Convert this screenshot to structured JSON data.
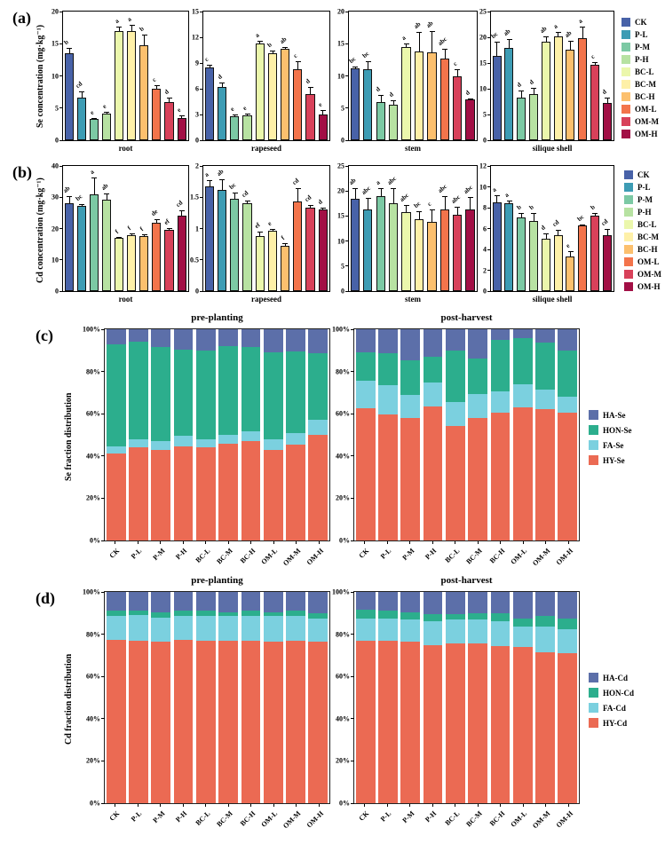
{
  "chart_data": {
    "treatments": [
      "CK",
      "P-L",
      "P-M",
      "P-H",
      "BC-L",
      "BC-M",
      "BC-H",
      "OM-L",
      "OM-M",
      "OM-H"
    ],
    "palette": [
      "#4862A8",
      "#3D9CB4",
      "#7CC9A4",
      "#B7E2A2",
      "#EBF7AC",
      "#FEF0A8",
      "#FCC06E",
      "#F3744B",
      "#D8415A",
      "#A20F45"
    ],
    "fraction_colors": {
      "HY": "#EB6A53",
      "FA": "#7BD0DF",
      "HON": "#2CAE8D",
      "HA": "#5C6FA9"
    },
    "fraction_order_bottom_to_top": [
      "HY",
      "FA",
      "HON",
      "HA"
    ],
    "panel_a": {
      "label": "(a)",
      "type": "bar",
      "ylabel": "Se concentration (mg·kg⁻¹)",
      "charts": [
        {
          "xlabel": "root",
          "ymax": 20,
          "yticks": [
            "0",
            "5",
            "10",
            "15",
            "20"
          ],
          "values": [
            13.5,
            6.6,
            3.3,
            4.1,
            17.0,
            17.0,
            14.8,
            8.0,
            6.0,
            3.5
          ],
          "errors": [
            0.9,
            1.0,
            0.2,
            0.3,
            0.6,
            1.0,
            1.6,
            0.5,
            0.6,
            0.4
          ],
          "letters": [
            "b",
            "cd",
            "e",
            "e",
            "a",
            "a",
            "b",
            "c",
            "d",
            "e"
          ]
        },
        {
          "xlabel": "rapeseed",
          "ymax": 15,
          "yticks": [
            "0",
            "3",
            "6",
            "9",
            "12",
            "15"
          ],
          "values": [
            8.5,
            6.2,
            2.8,
            2.9,
            11.3,
            10.1,
            10.7,
            8.3,
            5.4,
            3.0
          ],
          "errors": [
            0.3,
            0.5,
            0.15,
            0.2,
            0.25,
            0.3,
            0.2,
            0.9,
            0.8,
            0.5
          ],
          "letters": [
            "c",
            "d",
            "e",
            "e",
            "a",
            "b",
            "ab",
            "c",
            "d",
            "e"
          ]
        },
        {
          "xlabel": "stem",
          "ymax": 20,
          "yticks": [
            "0",
            "5",
            "10",
            "15",
            "20"
          ],
          "values": [
            11.2,
            11.0,
            6.0,
            5.5,
            14.5,
            13.8,
            13.7,
            12.7,
            10.0,
            6.3
          ],
          "errors": [
            0.2,
            1.3,
            1.0,
            0.7,
            0.6,
            3.0,
            3.2,
            1.5,
            1.0,
            0.2
          ],
          "letters": [
            "bc",
            "bc",
            "d",
            "d",
            "a",
            "ab",
            "ab",
            "abc",
            "c",
            "d"
          ]
        },
        {
          "xlabel": "silique shell",
          "ymax": 25,
          "yticks": [
            "0",
            "5",
            "10",
            "15",
            "20",
            "25"
          ],
          "values": [
            16.4,
            18.0,
            8.3,
            9.0,
            19.1,
            20.2,
            17.6,
            19.8,
            14.7,
            7.2
          ],
          "errors": [
            2.7,
            1.7,
            1.4,
            1.1,
            1.1,
            0.9,
            1.7,
            2.3,
            0.5,
            1.0
          ],
          "letters": [
            "bc",
            "ab",
            "d",
            "d",
            "ab",
            "a",
            "ab",
            "a",
            "c",
            "d"
          ]
        }
      ]
    },
    "panel_b": {
      "label": "(b)",
      "type": "bar",
      "ylabel": "Cd concentration (mg·kg⁻¹)",
      "charts": [
        {
          "xlabel": "root",
          "ymax": 40,
          "yticks": [
            "0",
            "10",
            "20",
            "30",
            "40"
          ],
          "values": [
            28.0,
            27.2,
            31.0,
            29.2,
            17.0,
            18.0,
            17.5,
            21.8,
            19.5,
            24.2
          ],
          "errors": [
            2.3,
            0.6,
            5.2,
            2.0,
            0.4,
            0.4,
            0.8,
            1.2,
            0.7,
            1.5
          ],
          "letters": [
            "ab",
            "bc",
            "a",
            "ab",
            "f",
            "f",
            "f",
            "de",
            "ef",
            "cd"
          ]
        },
        {
          "xlabel": "rapeseed",
          "ymax": 2,
          "yticks": [
            "0",
            "0.5",
            "1",
            "1.5",
            "2"
          ],
          "values": [
            1.67,
            1.62,
            1.48,
            1.4,
            0.88,
            0.96,
            0.73,
            1.43,
            1.33,
            1.3
          ],
          "errors": [
            0.1,
            0.17,
            0.1,
            0.05,
            0.07,
            0.03,
            0.03,
            0.22,
            0.05,
            0.03
          ],
          "letters": [
            "a",
            "ab",
            "bc",
            "cd",
            "ef",
            "e",
            "f",
            "cd",
            "cd",
            "d"
          ]
        },
        {
          "xlabel": "stem",
          "ymax": 25,
          "yticks": [
            "0",
            "5",
            "10",
            "15",
            "20",
            "25"
          ],
          "values": [
            18.5,
            16.3,
            19.0,
            17.5,
            15.7,
            14.3,
            13.8,
            16.4,
            15.3,
            16.4
          ],
          "errors": [
            2.0,
            2.4,
            1.5,
            3.0,
            1.5,
            1.7,
            2.5,
            2.5,
            1.6,
            2.4
          ],
          "letters": [
            "ab",
            "abc",
            "a",
            "abc",
            "abc",
            "bc",
            "c",
            "abc",
            "abc",
            "abc"
          ]
        },
        {
          "xlabel": "silique shell",
          "ymax": 12,
          "yticks": [
            "0",
            "2",
            "4",
            "6",
            "8",
            "10",
            "12"
          ],
          "values": [
            8.5,
            8.4,
            7.1,
            6.7,
            5.0,
            5.4,
            3.3,
            6.3,
            7.2,
            5.4
          ],
          "errors": [
            0.7,
            0.3,
            0.4,
            0.8,
            0.5,
            0.5,
            0.5,
            0.1,
            0.3,
            0.6
          ],
          "letters": [
            "a",
            "a",
            "b",
            "b",
            "d",
            "cd",
            "e",
            "bc",
            "b",
            "cd"
          ]
        }
      ]
    },
    "panel_c": {
      "label": "(c)",
      "type": "stacked-bar",
      "ylabel": "Se fraction distribution",
      "yticks": [
        "0%",
        "20%",
        "40%",
        "60%",
        "80%",
        "100%"
      ],
      "legend": [
        {
          "label": "HA-Se",
          "color": "#5C6FA9"
        },
        {
          "label": "HON-Se",
          "color": "#2CAE8D"
        },
        {
          "label": "FA-Se",
          "color": "#7BD0DF"
        },
        {
          "label": "HY-Se",
          "color": "#EB6A53"
        }
      ],
      "charts": [
        {
          "title": "pre-planting",
          "rows": [
            [
              41,
              3.5,
              48.5,
              7
            ],
            [
              44,
              4,
              46,
              6
            ],
            [
              43,
              4,
              44.5,
              8.5
            ],
            [
              44.5,
              5,
              41,
              9.5
            ],
            [
              44,
              4,
              42,
              10
            ],
            [
              46,
              4,
              42,
              8
            ],
            [
              47,
              4.5,
              40,
              8.5
            ],
            [
              43,
              5,
              41,
              11
            ],
            [
              45.5,
              5.5,
              38.5,
              10.5
            ],
            [
              50,
              7,
              31.5,
              11.5
            ]
          ]
        },
        {
          "title": "post-harvest",
          "rows": [
            [
              62.5,
              13,
              13.5,
              11
            ],
            [
              59.5,
              14,
              15,
              11.5
            ],
            [
              58,
              11,
              16.5,
              14.5
            ],
            [
              63.5,
              11.5,
              12,
              13
            ],
            [
              54,
              11.5,
              24.5,
              10
            ],
            [
              58,
              11.5,
              16.5,
              14
            ],
            [
              60.5,
              10,
              24.5,
              5
            ],
            [
              63,
              11,
              22,
              4
            ],
            [
              62,
              9.5,
              22,
              6.5
            ],
            [
              60.5,
              7.5,
              22,
              10
            ]
          ]
        }
      ]
    },
    "panel_d": {
      "label": "(d)",
      "type": "stacked-bar",
      "ylabel": "Cd fraction distribution",
      "yticks": [
        "0%",
        "20%",
        "40%",
        "60%",
        "80%",
        "100%"
      ],
      "legend": [
        {
          "label": "HA-Cd",
          "color": "#5C6FA9"
        },
        {
          "label": "HON-Cd",
          "color": "#2CAE8D"
        },
        {
          "label": "FA-Cd",
          "color": "#7BD0DF"
        },
        {
          "label": "HY-Cd",
          "color": "#EB6A53"
        }
      ],
      "charts": [
        {
          "title": "pre-planting",
          "rows": [
            [
              77.5,
              11,
              2.5,
              9
            ],
            [
              77,
              12,
              2,
              9
            ],
            [
              76.5,
              11.5,
              2.5,
              9.5
            ],
            [
              77.5,
              11,
              2.5,
              9
            ],
            [
              77,
              11.5,
              2.5,
              9
            ],
            [
              77,
              11.5,
              2,
              9.5
            ],
            [
              77,
              11.5,
              2.5,
              9
            ],
            [
              76.5,
              12,
              2,
              9.5
            ],
            [
              77,
              11.5,
              2.5,
              9
            ],
            [
              76.5,
              11,
              2.5,
              10
            ]
          ]
        },
        {
          "title": "post-harvest",
          "rows": [
            [
              77,
              10.5,
              4,
              8.5
            ],
            [
              77,
              10.5,
              3.5,
              9
            ],
            [
              76.5,
              10.5,
              3.5,
              9.5
            ],
            [
              75,
              11,
              3.5,
              10.5
            ],
            [
              75.5,
              11.5,
              2.5,
              10.5
            ],
            [
              75.5,
              11.5,
              3,
              10
            ],
            [
              74.5,
              11.5,
              4,
              10
            ],
            [
              74,
              9.5,
              4,
              12.5
            ],
            [
              71.5,
              12,
              5,
              11.5
            ],
            [
              71,
              11.5,
              5,
              12.5
            ]
          ]
        }
      ]
    }
  }
}
